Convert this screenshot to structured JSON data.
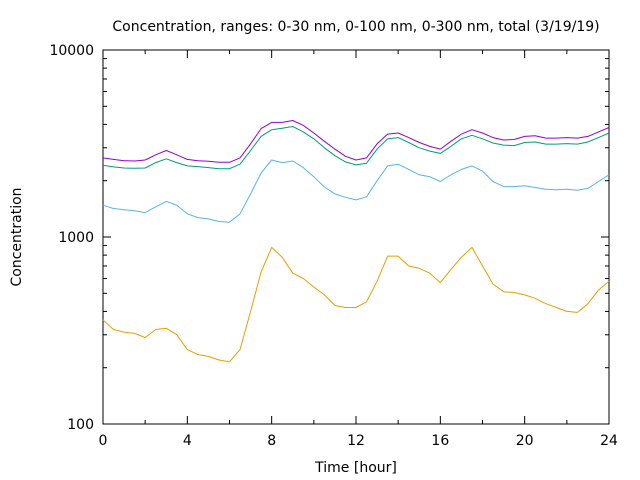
{
  "chart_data": {
    "type": "line",
    "title": "Concentration, ranges: 0-30 nm, 0-100 nm, 0-300 nm, total (3/19/19)",
    "xlabel": "Time [hour]",
    "ylabel": "Concentration",
    "xlim": [
      0,
      24
    ],
    "ylim": [
      100,
      10000
    ],
    "yscale": "log",
    "grid": false,
    "x_ticks": [
      0,
      4,
      8,
      12,
      16,
      20,
      24
    ],
    "x_tick_labels": [
      "0",
      "4",
      "8",
      "12",
      "16",
      "20",
      "24"
    ],
    "y_ticks": [
      100,
      1000,
      10000
    ],
    "y_tick_labels": [
      "100",
      "1000",
      "10000"
    ],
    "x": [
      0,
      0.5,
      1,
      1.5,
      2,
      2.5,
      3,
      3.5,
      4,
      4.5,
      5,
      5.5,
      6,
      6.5,
      7,
      7.5,
      8,
      8.5,
      9,
      9.5,
      10,
      10.5,
      11,
      11.5,
      12,
      12.5,
      13,
      13.5,
      14,
      14.5,
      15,
      15.5,
      16,
      16.5,
      17,
      17.5,
      18,
      18.5,
      19,
      19.5,
      20,
      20.5,
      21,
      21.5,
      22,
      22.5,
      23,
      23.5,
      24
    ],
    "series": [
      {
        "color": "#e69f00",
        "values": [
          360,
          320,
          310,
          305,
          290,
          320,
          325,
          300,
          250,
          235,
          230,
          220,
          215,
          250,
          400,
          650,
          880,
          780,
          640,
          600,
          540,
          490,
          430,
          420,
          420,
          450,
          580,
          790,
          790,
          700,
          680,
          640,
          570,
          670,
          780,
          880,
          700,
          560,
          510,
          505,
          490,
          470,
          440,
          420,
          400,
          395,
          440,
          520,
          580
        ]
      },
      {
        "color": "#56b4e9",
        "values": [
          1480,
          1420,
          1400,
          1380,
          1350,
          1450,
          1550,
          1480,
          1330,
          1270,
          1250,
          1210,
          1200,
          1330,
          1700,
          2200,
          2580,
          2500,
          2550,
          2350,
          2100,
          1850,
          1700,
          1630,
          1580,
          1640,
          2000,
          2400,
          2450,
          2300,
          2150,
          2100,
          1980,
          2150,
          2300,
          2400,
          2250,
          1980,
          1860,
          1860,
          1880,
          1840,
          1800,
          1790,
          1800,
          1780,
          1820,
          1980,
          2150
        ]
      },
      {
        "color": "#009e73",
        "values": [
          2420,
          2370,
          2340,
          2330,
          2340,
          2500,
          2620,
          2500,
          2400,
          2380,
          2350,
          2320,
          2320,
          2450,
          2900,
          3450,
          3750,
          3820,
          3900,
          3650,
          3350,
          3000,
          2720,
          2520,
          2430,
          2480,
          2950,
          3350,
          3400,
          3200,
          3000,
          2880,
          2800,
          3050,
          3350,
          3500,
          3350,
          3180,
          3100,
          3080,
          3200,
          3220,
          3140,
          3140,
          3160,
          3140,
          3220,
          3400,
          3600
        ]
      },
      {
        "color": "#9400d3",
        "values": [
          2650,
          2600,
          2560,
          2550,
          2580,
          2750,
          2900,
          2750,
          2600,
          2560,
          2540,
          2510,
          2510,
          2650,
          3150,
          3800,
          4100,
          4100,
          4200,
          3950,
          3600,
          3250,
          2950,
          2700,
          2580,
          2650,
          3150,
          3550,
          3600,
          3400,
          3200,
          3050,
          2950,
          3250,
          3550,
          3750,
          3600,
          3400,
          3300,
          3320,
          3450,
          3480,
          3380,
          3380,
          3400,
          3380,
          3450,
          3650,
          3850
        ]
      }
    ]
  }
}
